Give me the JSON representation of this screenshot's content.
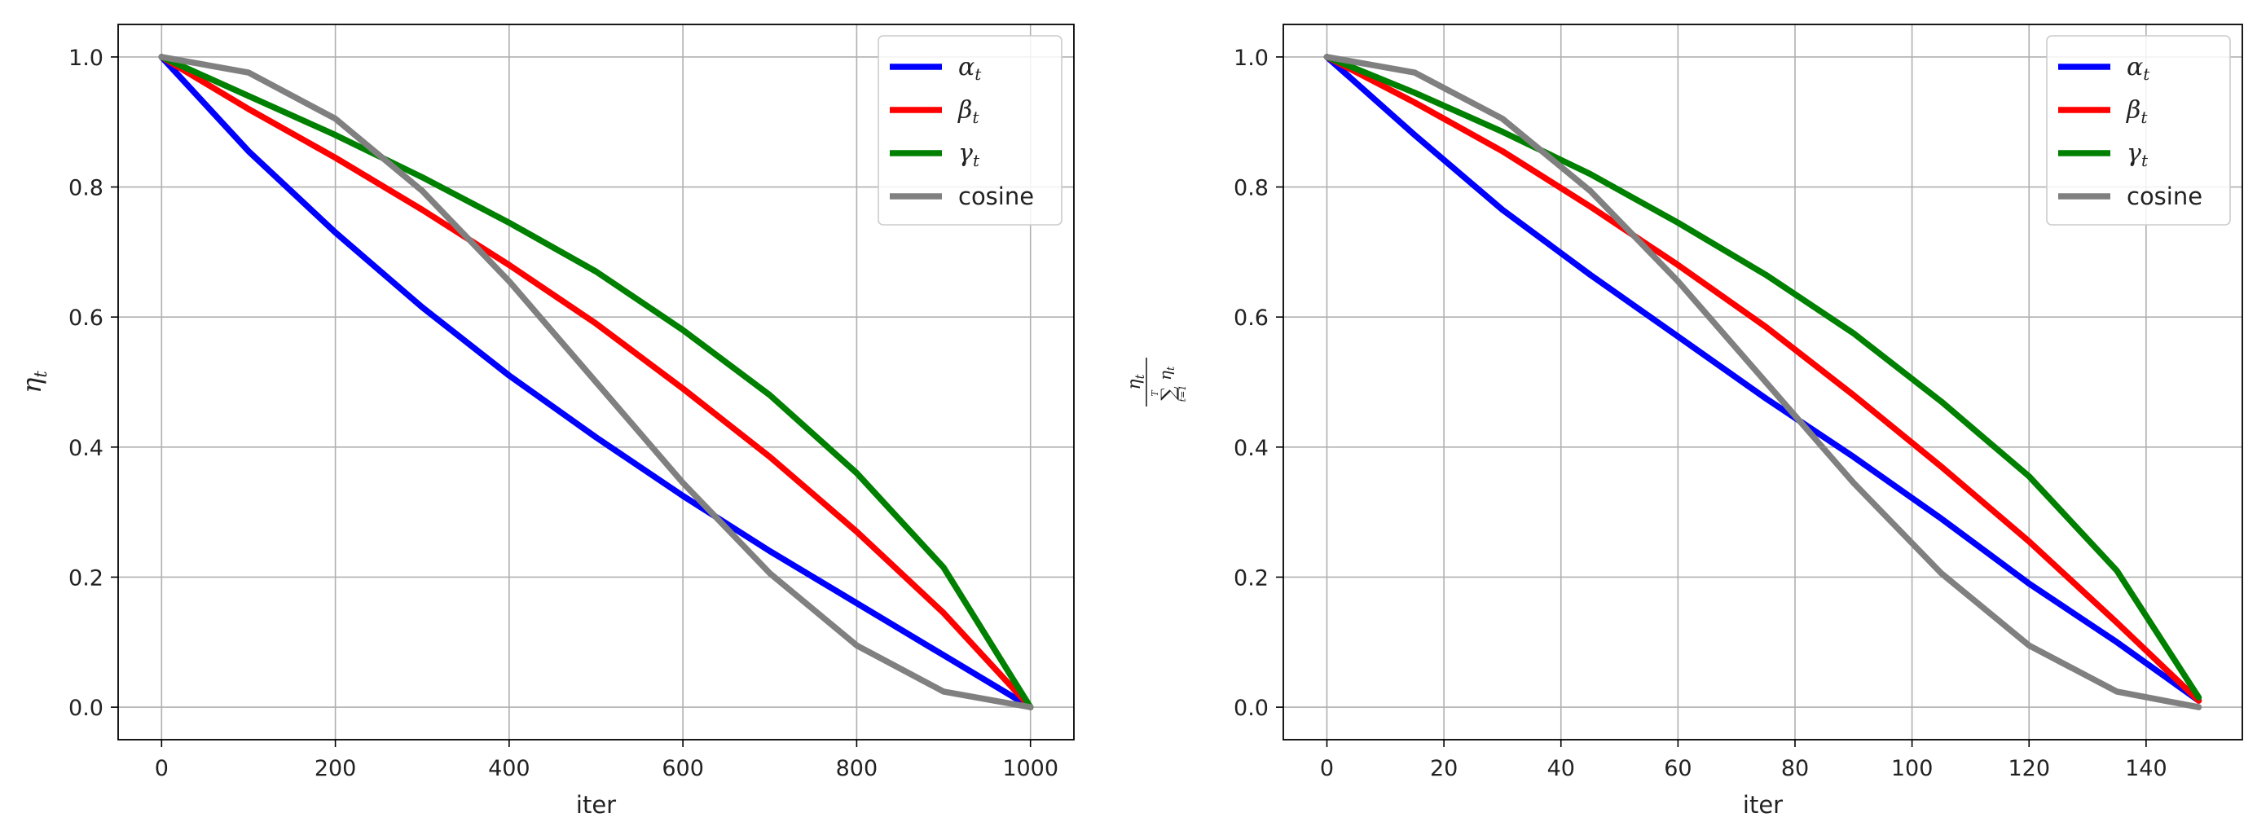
{
  "chart_data": [
    {
      "type": "line",
      "title": "",
      "xlabel": "iter",
      "ylabel": "η_t",
      "xlim": [
        -50,
        1050
      ],
      "ylim": [
        -0.05,
        1.05
      ],
      "xticks": [
        0,
        200,
        400,
        600,
        800,
        1000
      ],
      "yticks": [
        0.0,
        0.2,
        0.4,
        0.6,
        0.8,
        1.0
      ],
      "xtick_labels": [
        "0",
        "200",
        "400",
        "600",
        "800",
        "1000"
      ],
      "ytick_labels": [
        "0.0",
        "0.2",
        "0.4",
        "0.6",
        "0.8",
        "1.0"
      ],
      "grid": true,
      "legend_position": "top-right",
      "series": [
        {
          "name": "α_t",
          "symbol": "α",
          "sub": "t",
          "color": "#0000ff",
          "x": [
            0,
            100,
            200,
            300,
            400,
            500,
            600,
            700,
            800,
            900,
            1000
          ],
          "values": [
            1.0,
            0.855,
            0.73,
            0.615,
            0.51,
            0.415,
            0.325,
            0.24,
            0.16,
            0.08,
            0.0
          ]
        },
        {
          "name": "β_t",
          "symbol": "β",
          "sub": "t",
          "color": "#ff0000",
          "x": [
            0,
            100,
            200,
            300,
            400,
            500,
            600,
            700,
            800,
            900,
            1000
          ],
          "values": [
            1.0,
            0.92,
            0.845,
            0.765,
            0.68,
            0.59,
            0.49,
            0.385,
            0.27,
            0.145,
            0.0
          ]
        },
        {
          "name": "γ_t",
          "symbol": "γ",
          "sub": "t",
          "color": "#008000",
          "x": [
            0,
            100,
            200,
            300,
            400,
            500,
            600,
            700,
            800,
            900,
            1000
          ],
          "values": [
            1.0,
            0.94,
            0.88,
            0.815,
            0.745,
            0.67,
            0.58,
            0.48,
            0.36,
            0.215,
            0.0
          ]
        },
        {
          "name": "cosine",
          "symbol": "",
          "sub": "",
          "color": "#808080",
          "x": [
            0,
            100,
            200,
            300,
            400,
            500,
            600,
            700,
            800,
            900,
            1000
          ],
          "values": [
            1.0,
            0.976,
            0.905,
            0.794,
            0.655,
            0.5,
            0.345,
            0.206,
            0.095,
            0.024,
            0.0
          ]
        }
      ]
    },
    {
      "type": "line",
      "title": "",
      "xlabel": "iter",
      "ylabel": "η_t / Σ_{t=1}^{T} η_t",
      "ylabel_num": "η",
      "ylabel_num_sub": "t",
      "ylabel_den": "∑",
      "ylabel_den_sup": "T",
      "ylabel_den_sub": "t=1",
      "ylabel_den_term": "η",
      "ylabel_den_term_sub": "t",
      "xlim": [
        -7.45,
        156.45
      ],
      "ylim": [
        -0.05,
        1.05
      ],
      "xticks": [
        0,
        20,
        40,
        60,
        80,
        100,
        120,
        140
      ],
      "yticks": [
        0.0,
        0.2,
        0.4,
        0.6,
        0.8,
        1.0
      ],
      "xtick_labels": [
        "0",
        "20",
        "40",
        "60",
        "80",
        "100",
        "120",
        "140"
      ],
      "ytick_labels": [
        "0.0",
        "0.2",
        "0.4",
        "0.6",
        "0.8",
        "1.0"
      ],
      "grid": true,
      "legend_position": "top-right",
      "series": [
        {
          "name": "α_t",
          "symbol": "α",
          "sub": "t",
          "color": "#0000ff",
          "x": [
            0,
            15,
            30,
            45,
            60,
            75,
            90,
            105,
            120,
            135,
            149
          ],
          "values": [
            1.0,
            0.88,
            0.765,
            0.665,
            0.57,
            0.475,
            0.385,
            0.29,
            0.19,
            0.1,
            0.01
          ]
        },
        {
          "name": "β_t",
          "symbol": "β",
          "sub": "t",
          "color": "#ff0000",
          "x": [
            0,
            15,
            30,
            45,
            60,
            75,
            90,
            105,
            120,
            135,
            149
          ],
          "values": [
            1.0,
            0.93,
            0.855,
            0.77,
            0.68,
            0.585,
            0.48,
            0.37,
            0.255,
            0.13,
            0.01
          ]
        },
        {
          "name": "γ_t",
          "symbol": "γ",
          "sub": "t",
          "color": "#008000",
          "x": [
            0,
            15,
            30,
            45,
            60,
            75,
            90,
            105,
            120,
            135,
            149
          ],
          "values": [
            1.0,
            0.945,
            0.885,
            0.82,
            0.745,
            0.665,
            0.575,
            0.47,
            0.355,
            0.21,
            0.015
          ]
        },
        {
          "name": "cosine",
          "symbol": "",
          "sub": "",
          "color": "#808080",
          "x": [
            0,
            15,
            30,
            45,
            60,
            75,
            90,
            105,
            120,
            135,
            149
          ],
          "values": [
            1.0,
            0.976,
            0.905,
            0.794,
            0.655,
            0.5,
            0.345,
            0.206,
            0.095,
            0.024,
            0.0
          ]
        }
      ]
    }
  ]
}
